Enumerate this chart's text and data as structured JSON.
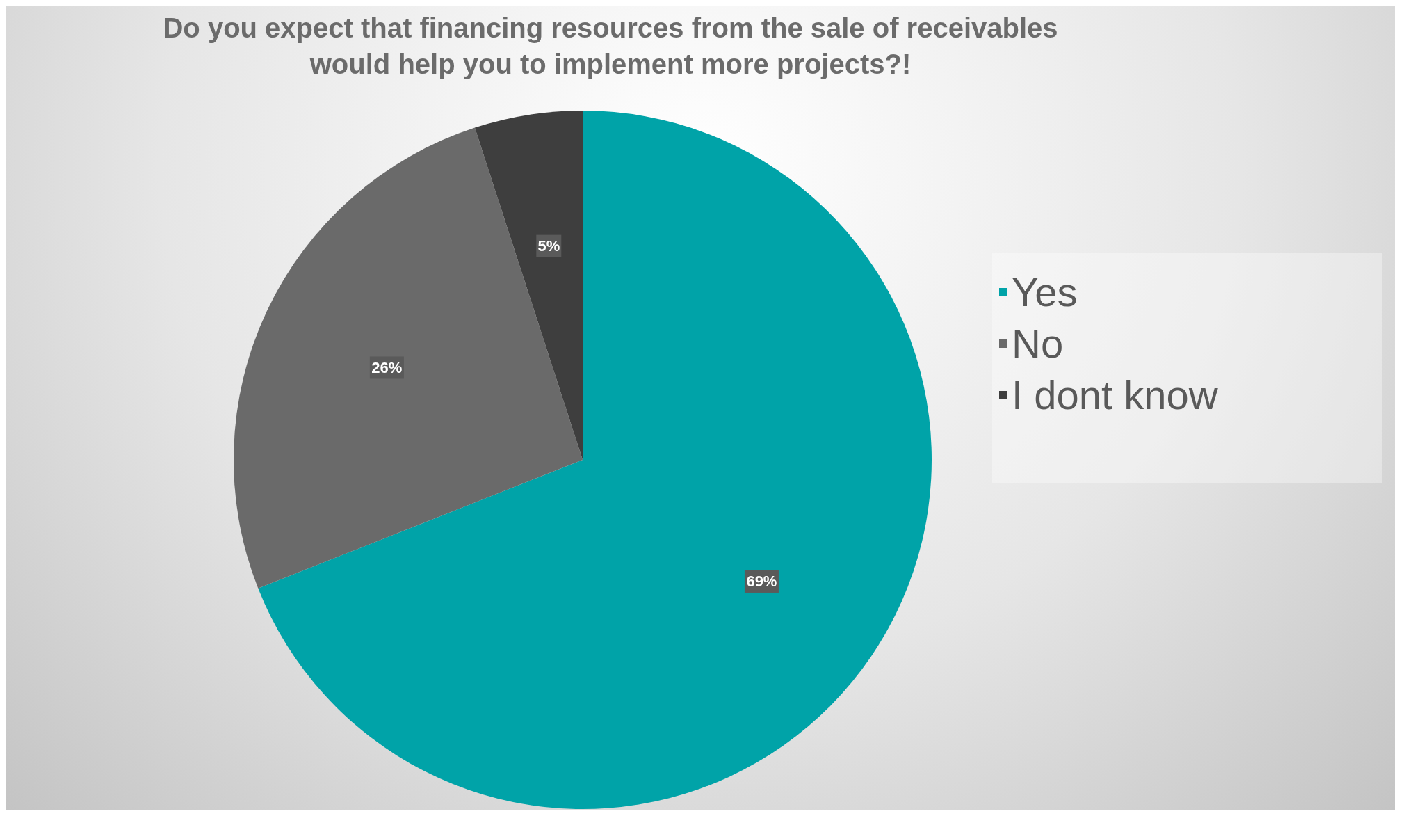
{
  "chart_data": {
    "type": "pie",
    "title": "Do you expect that financing resources from the sale of receivables would help you to implement more projects?!",
    "categories": [
      "Yes",
      "No",
      "I dont know"
    ],
    "values": [
      69,
      26,
      5
    ],
    "colors": [
      "#00a3a8",
      "#6a6a6a",
      "#3e3e3e"
    ],
    "value_labels": [
      "69%",
      "26%",
      "5%"
    ],
    "legend": "right"
  }
}
